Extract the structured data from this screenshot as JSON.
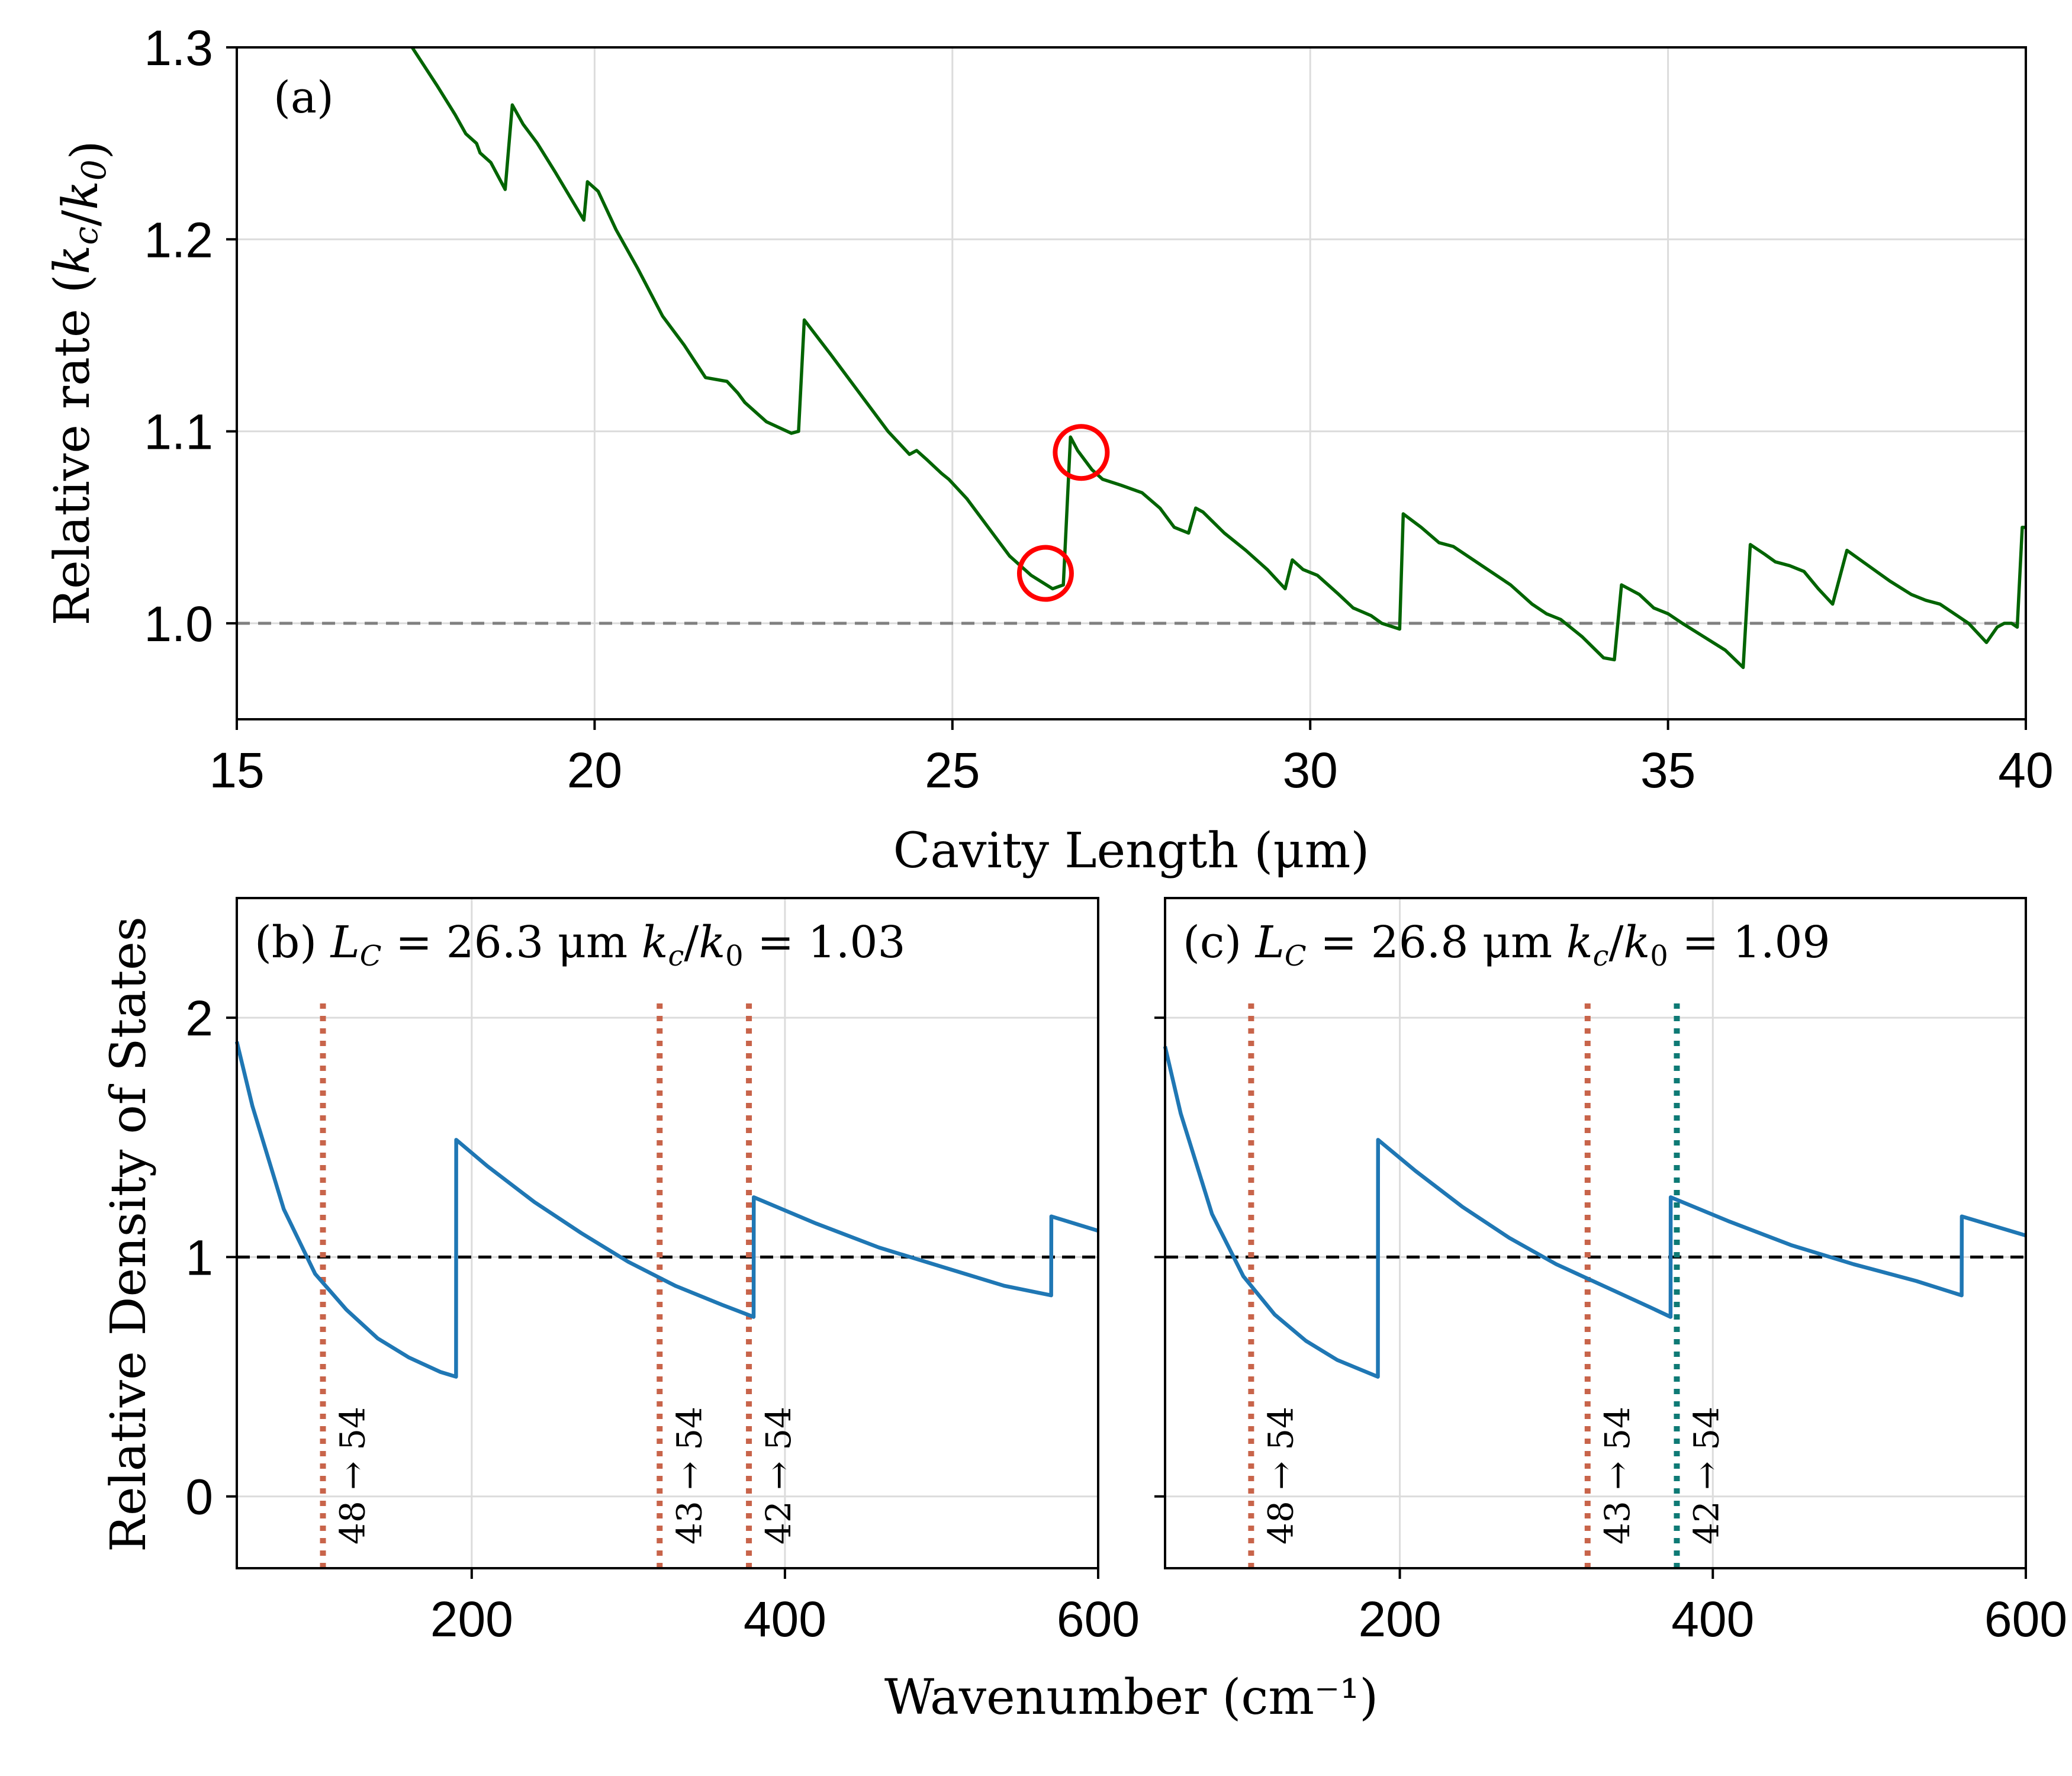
{
  "chart_data": [
    {
      "id": "a",
      "type": "line",
      "panel_label": "(a)",
      "xlabel": "Cavity Length (μm)",
      "ylabel": "Relative rate (k_c/k_0)",
      "xlim": [
        15,
        40
      ],
      "ylim": [
        0.95,
        1.3
      ],
      "xticks": [
        "15",
        "20",
        "25",
        "30",
        "35",
        "40"
      ],
      "xtick_values": [
        15,
        20,
        25,
        30,
        35,
        40
      ],
      "yticks": [
        "1.0",
        "1.1",
        "1.2",
        "1.3"
      ],
      "ytick_values": [
        1.0,
        1.1,
        1.2,
        1.3
      ],
      "reference_line": 1.0,
      "series": [
        {
          "name": "relative rate",
          "color": "#006400",
          "x": [
            17.45,
            17.8,
            18.05,
            18.2,
            18.35,
            18.4,
            18.55,
            18.75,
            18.85,
            19.0,
            19.2,
            19.45,
            19.85,
            19.9,
            20.05,
            20.3,
            20.6,
            20.95,
            21.25,
            21.55,
            21.85,
            22.0,
            22.1,
            22.4,
            22.75,
            22.85,
            22.93,
            23.3,
            23.7,
            24.1,
            24.4,
            24.5,
            24.65,
            24.85,
            24.95,
            25.2,
            25.5,
            25.8,
            26.1,
            26.4,
            26.55,
            26.65,
            26.75,
            26.95,
            27.1,
            27.35,
            27.5,
            27.65,
            27.9,
            28.1,
            28.3,
            28.4,
            28.5,
            28.8,
            29.1,
            29.4,
            29.65,
            29.75,
            29.9,
            30.1,
            30.4,
            30.6,
            30.85,
            31.0,
            31.25,
            31.3,
            31.55,
            31.8,
            32.0,
            32.4,
            32.8,
            33.1,
            33.3,
            33.5,
            33.8,
            34.1,
            34.25,
            34.35,
            34.6,
            34.8,
            35.0,
            35.2,
            35.5,
            35.8,
            36.05,
            36.15,
            36.35,
            36.5,
            36.7,
            36.9,
            37.1,
            37.3,
            37.5,
            37.8,
            38.1,
            38.4,
            38.6,
            38.8,
            39.0,
            39.2,
            39.45,
            39.6,
            39.7,
            39.8,
            39.88,
            39.95,
            40.0
          ],
          "y": [
            1.3,
            1.28,
            1.265,
            1.255,
            1.25,
            1.245,
            1.24,
            1.226,
            1.27,
            1.26,
            1.25,
            1.235,
            1.21,
            1.23,
            1.225,
            1.205,
            1.185,
            1.16,
            1.145,
            1.128,
            1.126,
            1.12,
            1.115,
            1.105,
            1.099,
            1.1,
            1.158,
            1.14,
            1.12,
            1.1,
            1.088,
            1.09,
            1.085,
            1.078,
            1.075,
            1.065,
            1.05,
            1.035,
            1.025,
            1.018,
            1.02,
            1.097,
            1.09,
            1.08,
            1.075,
            1.072,
            1.07,
            1.068,
            1.06,
            1.05,
            1.047,
            1.06,
            1.058,
            1.047,
            1.038,
            1.028,
            1.018,
            1.033,
            1.028,
            1.025,
            1.015,
            1.008,
            1.004,
            1.0,
            0.997,
            1.057,
            1.05,
            1.042,
            1.04,
            1.03,
            1.02,
            1.01,
            1.005,
            1.002,
            0.993,
            0.982,
            0.981,
            1.02,
            1.015,
            1.008,
            1.005,
            1.0,
            0.993,
            0.986,
            0.977,
            1.041,
            1.036,
            1.032,
            1.03,
            1.027,
            1.018,
            1.01,
            1.038,
            1.03,
            1.022,
            1.015,
            1.012,
            1.01,
            1.005,
            1.0,
            0.99,
            0.998,
            1.0,
            1.0,
            0.998,
            1.05,
            1.05
          ]
        }
      ],
      "annotations": [
        {
          "type": "circle",
          "color": "#ff0000",
          "x": 26.3,
          "y": 1.026,
          "note": "L_C = 26.3 μm"
        },
        {
          "type": "circle",
          "color": "#ff0000",
          "x": 26.8,
          "y": 1.089,
          "note": "L_C = 26.8 μm"
        }
      ]
    },
    {
      "id": "b",
      "type": "line",
      "panel_label": "(b)",
      "title": {
        "prefix": "L",
        "subscript": "C",
        "eq1": " =  ",
        "length": "26.3",
        "unit": " μm ",
        "k": "k",
        "c": "c",
        "slash": "/",
        "k0": "k",
        "zero": "0",
        "eq2": " =  ",
        "rate": "1.03"
      },
      "xlabel": "Wavenumber (cm⁻¹)",
      "ylabel": "Relative Density of States",
      "xlim": [
        50,
        600
      ],
      "ylim": [
        -0.3,
        2.5
      ],
      "xticks": [
        "200",
        "400",
        "600"
      ],
      "xtick_values": [
        200,
        400,
        600
      ],
      "yticks": [
        "0",
        "1",
        "2"
      ],
      "ytick_values": [
        0,
        1,
        2
      ],
      "reference_line": 1.0,
      "mode_cutoffs": [
        50,
        190,
        380,
        570
      ],
      "jump_to": [
        1.9,
        1.49,
        1.25,
        1.17
      ],
      "series": [
        {
          "name": "relative density of states",
          "color": "#1f77b4",
          "x": [
            50,
            60,
            80,
            100,
            120,
            140,
            160,
            180,
            190,
            190.1,
            210,
            240,
            270,
            300,
            330,
            360,
            380,
            380.1,
            420,
            460,
            500,
            540,
            570,
            570.1,
            600
          ],
          "y": [
            1.9,
            1.63,
            1.2,
            0.93,
            0.78,
            0.66,
            0.58,
            0.52,
            0.5,
            1.49,
            1.38,
            1.23,
            1.1,
            0.98,
            0.88,
            0.8,
            0.75,
            1.25,
            1.14,
            1.04,
            0.96,
            0.88,
            0.84,
            1.17,
            1.11
          ]
        }
      ],
      "transitions": [
        {
          "label": "48 → 54",
          "x": 105,
          "color": "#c8644a"
        },
        {
          "label": "43 → 54",
          "x": 320,
          "color": "#c8644a"
        },
        {
          "label": "42 → 54",
          "x": 377,
          "color": "#c8644a"
        }
      ]
    },
    {
      "id": "c",
      "type": "line",
      "panel_label": "(c)",
      "title": {
        "prefix": "L",
        "subscript": "C",
        "eq1": " =  ",
        "length": "26.8",
        "unit": " μm ",
        "k": "k",
        "c": "c",
        "slash": "/",
        "k0": "k",
        "zero": "0",
        "eq2": " =  ",
        "rate": "1.09"
      },
      "xlabel": "Wavenumber (cm⁻¹)",
      "xlim": [
        50,
        600
      ],
      "ylim": [
        -0.3,
        2.5
      ],
      "xticks": [
        "200",
        "400",
        "600"
      ],
      "xtick_values": [
        200,
        400,
        600
      ],
      "ytick_values": [
        0,
        1,
        2
      ],
      "reference_line": 1.0,
      "series": [
        {
          "name": "relative density of states",
          "color": "#1f77b4",
          "x": [
            50,
            60,
            80,
            100,
            120,
            140,
            160,
            186,
            186.1,
            210,
            240,
            270,
            300,
            330,
            360,
            373,
            373.1,
            410,
            450,
            490,
            530,
            559,
            559.1,
            600
          ],
          "y": [
            1.88,
            1.6,
            1.18,
            0.92,
            0.76,
            0.65,
            0.57,
            0.5,
            1.49,
            1.36,
            1.21,
            1.08,
            0.97,
            0.88,
            0.79,
            0.75,
            1.25,
            1.15,
            1.05,
            0.97,
            0.9,
            0.84,
            1.17,
            1.09
          ]
        }
      ],
      "transitions": [
        {
          "label": "48 → 54",
          "x": 105,
          "color": "#c8644a"
        },
        {
          "label": "43 → 54",
          "x": 320,
          "color": "#c8644a"
        },
        {
          "label": "42 → 54",
          "x": 377,
          "color": "#0e7a75"
        }
      ]
    }
  ]
}
